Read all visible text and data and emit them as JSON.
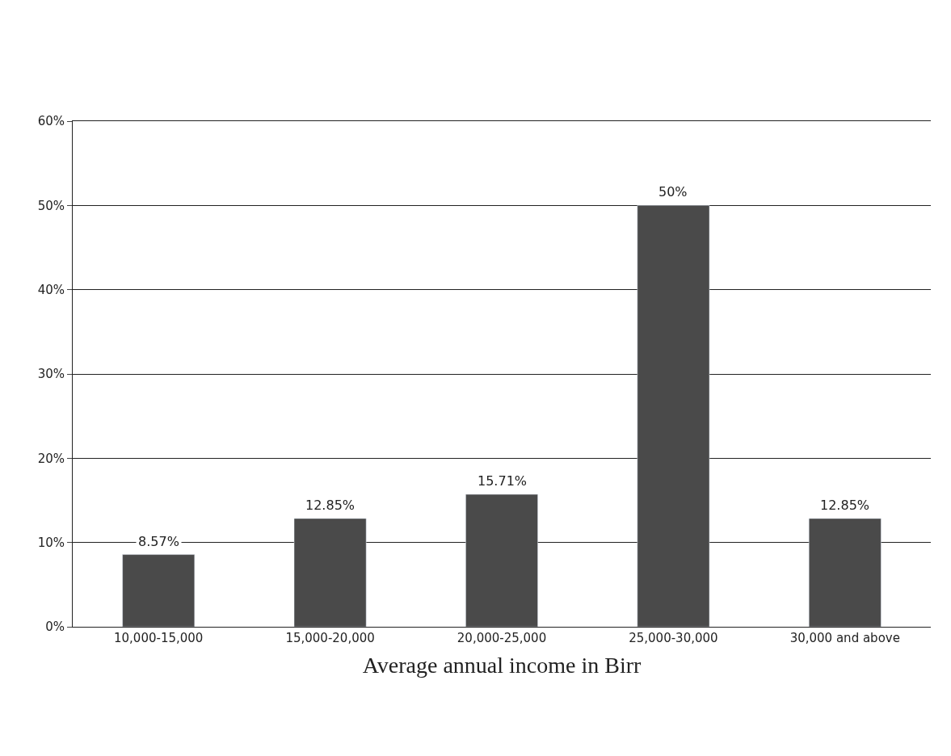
{
  "chart_data": {
    "type": "bar",
    "xlabel": "Average annual income in Birr",
    "categories": [
      "10,000-15,000",
      "15,000-20,000",
      "20,000-25,000",
      "25,000-30,000",
      "30,000 and above"
    ],
    "values": [
      8.57,
      12.85,
      15.71,
      50,
      12.85
    ],
    "value_labels": [
      "8.57%",
      "12.85%",
      "15.71%",
      "50%",
      "12.85%"
    ],
    "color": "#4a4a4a",
    "ylim": [
      0,
      60
    ],
    "yticks": [
      {
        "value": 0,
        "label": "0%"
      },
      {
        "value": 10,
        "label": "10%"
      },
      {
        "value": 20,
        "label": "20%"
      },
      {
        "value": 30,
        "label": "30%"
      },
      {
        "value": 40,
        "label": "40%"
      },
      {
        "value": 50,
        "label": "50%"
      },
      {
        "value": 60,
        "label": "60%"
      }
    ],
    "grid": "y"
  }
}
